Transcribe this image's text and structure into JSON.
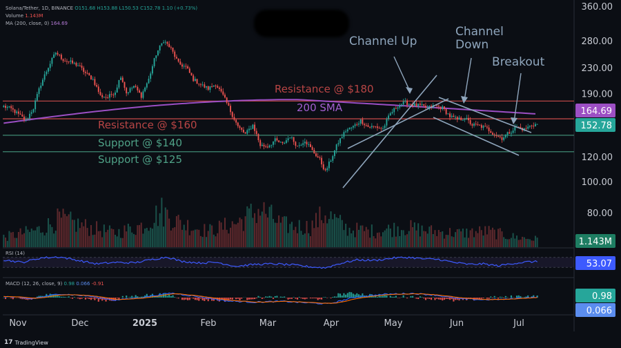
{
  "header": {
    "symbol_line": "Solana/Tether, 1D, BINANCE",
    "ohlc": {
      "o": "O151.68",
      "h": "H153.88",
      "l": "L150.53",
      "c": "C152.78",
      "chg": "1.10 (+0.73%)"
    },
    "volume_line": "Volume",
    "volume_value": "1.143M",
    "ma_line": "MA (200, close, 0)",
    "ma_value": "164.69"
  },
  "footer": {
    "brand": "TradingView",
    "logo": "17"
  },
  "colors": {
    "background": "#0b0e14",
    "up": "#26a69a",
    "down": "#ef5350",
    "ma": "#9c4fc4",
    "channel": "#8fa6bd",
    "resistance": "#b84545",
    "support": "#3f8a73",
    "rsi": "#3d5afe",
    "macd": "#2962ff",
    "signal": "#ff6d00"
  },
  "chart_data": {
    "type": "candlestick",
    "scale": "log",
    "y_ticks": [
      100,
      120,
      190,
      230,
      280,
      360
    ],
    "y_tick_labels": [
      "100.00",
      "120.00",
      "190.00",
      "230.00",
      "280.00",
      "360.00"
    ],
    "extra_price_label": "80.00",
    "x_labels": [
      "Nov",
      "Dec",
      "2025",
      "Feb",
      "Mar",
      "Apr",
      "May",
      "Jun",
      "Jul"
    ],
    "last_price": 152.78,
    "last_price_label": "152.78",
    "ma_label": "164.69",
    "volume_label": "1.143M",
    "rsi_label": "53.07",
    "macd_label": "0.98",
    "signal_label": "0.066",
    "ma200_label": "200 SMA",
    "ma200_start": 154,
    "ma200_peak": 183,
    "ma200_end": 164.69,
    "levels": [
      {
        "label": "Resistance @ $180",
        "price": 181,
        "kind": "resistance"
      },
      {
        "label": "Resistance @ $160",
        "price": 159,
        "kind": "resistance"
      },
      {
        "label": "Support @ $140",
        "price": 141,
        "kind": "support"
      },
      {
        "label": "Support @ $125",
        "price": 125,
        "kind": "support"
      }
    ],
    "annotations": [
      "Channel Up",
      "Channel Down",
      "Breakout"
    ],
    "rsi_title": "RSI (14)",
    "macd_title": "MACD (12, 26, close, 9)",
    "macd_vals": [
      "0.98",
      "0.066",
      "-0.91"
    ],
    "price_path": [
      [
        0,
        174
      ],
      [
        4,
        171
      ],
      [
        8,
        164
      ],
      [
        12,
        157
      ],
      [
        16,
        172
      ],
      [
        20,
        205
      ],
      [
        24,
        232
      ],
      [
        28,
        258
      ],
      [
        32,
        245
      ],
      [
        36,
        240
      ],
      [
        40,
        235
      ],
      [
        44,
        222
      ],
      [
        48,
        212
      ],
      [
        52,
        188
      ],
      [
        56,
        186
      ],
      [
        60,
        194
      ],
      [
        63,
        218
      ],
      [
        66,
        192
      ],
      [
        70,
        202
      ],
      [
        74,
        188
      ],
      [
        78,
        212
      ],
      [
        82,
        255
      ],
      [
        86,
        282
      ],
      [
        90,
        265
      ],
      [
        94,
        238
      ],
      [
        98,
        232
      ],
      [
        102,
        212
      ],
      [
        106,
        204
      ],
      [
        110,
        198
      ],
      [
        114,
        205
      ],
      [
        118,
        188
      ],
      [
        122,
        168
      ],
      [
        126,
        150
      ],
      [
        130,
        142
      ],
      [
        134,
        152
      ],
      [
        138,
        131
      ],
      [
        142,
        130
      ],
      [
        146,
        136
      ],
      [
        150,
        132
      ],
      [
        154,
        140
      ],
      [
        158,
        130
      ],
      [
        162,
        136
      ],
      [
        166,
        126
      ],
      [
        170,
        118
      ],
      [
        173,
        108
      ],
      [
        176,
        118
      ],
      [
        180,
        134
      ],
      [
        184,
        146
      ],
      [
        188,
        150
      ],
      [
        192,
        157
      ],
      [
        196,
        150
      ],
      [
        200,
        150
      ],
      [
        204,
        148
      ],
      [
        208,
        165
      ],
      [
        212,
        175
      ],
      [
        216,
        179
      ],
      [
        220,
        176
      ],
      [
        224,
        175
      ],
      [
        228,
        172
      ],
      [
        232,
        175
      ],
      [
        236,
        172
      ],
      [
        240,
        162
      ],
      [
        244,
        158
      ],
      [
        248,
        160
      ],
      [
        252,
        152
      ],
      [
        256,
        151
      ],
      [
        260,
        148
      ],
      [
        264,
        142
      ],
      [
        268,
        138
      ],
      [
        272,
        144
      ],
      [
        276,
        150
      ],
      [
        280,
        147
      ],
      [
        284,
        152
      ],
      [
        287,
        152.78
      ]
    ],
    "volume_profile": [
      [
        0,
        0.25
      ],
      [
        20,
        0.45
      ],
      [
        30,
        0.7
      ],
      [
        45,
        0.5
      ],
      [
        60,
        0.35
      ],
      [
        75,
        0.55
      ],
      [
        85,
        0.9
      ],
      [
        95,
        0.6
      ],
      [
        110,
        0.4
      ],
      [
        125,
        0.6
      ],
      [
        138,
        0.95
      ],
      [
        150,
        0.55
      ],
      [
        165,
        0.5
      ],
      [
        173,
        0.85
      ],
      [
        185,
        0.45
      ],
      [
        200,
        0.4
      ],
      [
        215,
        0.5
      ],
      [
        230,
        0.4
      ],
      [
        245,
        0.35
      ],
      [
        260,
        0.4
      ],
      [
        275,
        0.25
      ],
      [
        287,
        0.2
      ]
    ],
    "rsi_path": [
      [
        0,
        60
      ],
      [
        10,
        50
      ],
      [
        20,
        68
      ],
      [
        30,
        72
      ],
      [
        40,
        58
      ],
      [
        50,
        44
      ],
      [
        60,
        50
      ],
      [
        70,
        48
      ],
      [
        80,
        62
      ],
      [
        88,
        72
      ],
      [
        95,
        55
      ],
      [
        105,
        48
      ],
      [
        115,
        50
      ],
      [
        125,
        34
      ],
      [
        135,
        42
      ],
      [
        145,
        44
      ],
      [
        155,
        40
      ],
      [
        165,
        32
      ],
      [
        173,
        28
      ],
      [
        180,
        44
      ],
      [
        190,
        60
      ],
      [
        200,
        58
      ],
      [
        210,
        68
      ],
      [
        218,
        70
      ],
      [
        226,
        64
      ],
      [
        234,
        62
      ],
      [
        242,
        50
      ],
      [
        250,
        42
      ],
      [
        258,
        44
      ],
      [
        266,
        36
      ],
      [
        274,
        46
      ],
      [
        282,
        52
      ],
      [
        287,
        53
      ]
    ],
    "macd_path": [
      [
        0,
        0.3
      ],
      [
        15,
        -0.3
      ],
      [
        30,
        0.9
      ],
      [
        45,
        0.4
      ],
      [
        60,
        -0.6
      ],
      [
        75,
        0.1
      ],
      [
        90,
        1.1
      ],
      [
        105,
        0.2
      ],
      [
        120,
        -0.8
      ],
      [
        135,
        -1.1
      ],
      [
        150,
        -0.9
      ],
      [
        165,
        -1.3
      ],
      [
        175,
        -1.5
      ],
      [
        190,
        0.2
      ],
      [
        205,
        0.8
      ],
      [
        220,
        1.0
      ],
      [
        232,
        0.6
      ],
      [
        245,
        -0.3
      ],
      [
        258,
        -0.5
      ],
      [
        270,
        -0.4
      ],
      [
        280,
        0.0
      ],
      [
        287,
        0.1
      ]
    ]
  }
}
